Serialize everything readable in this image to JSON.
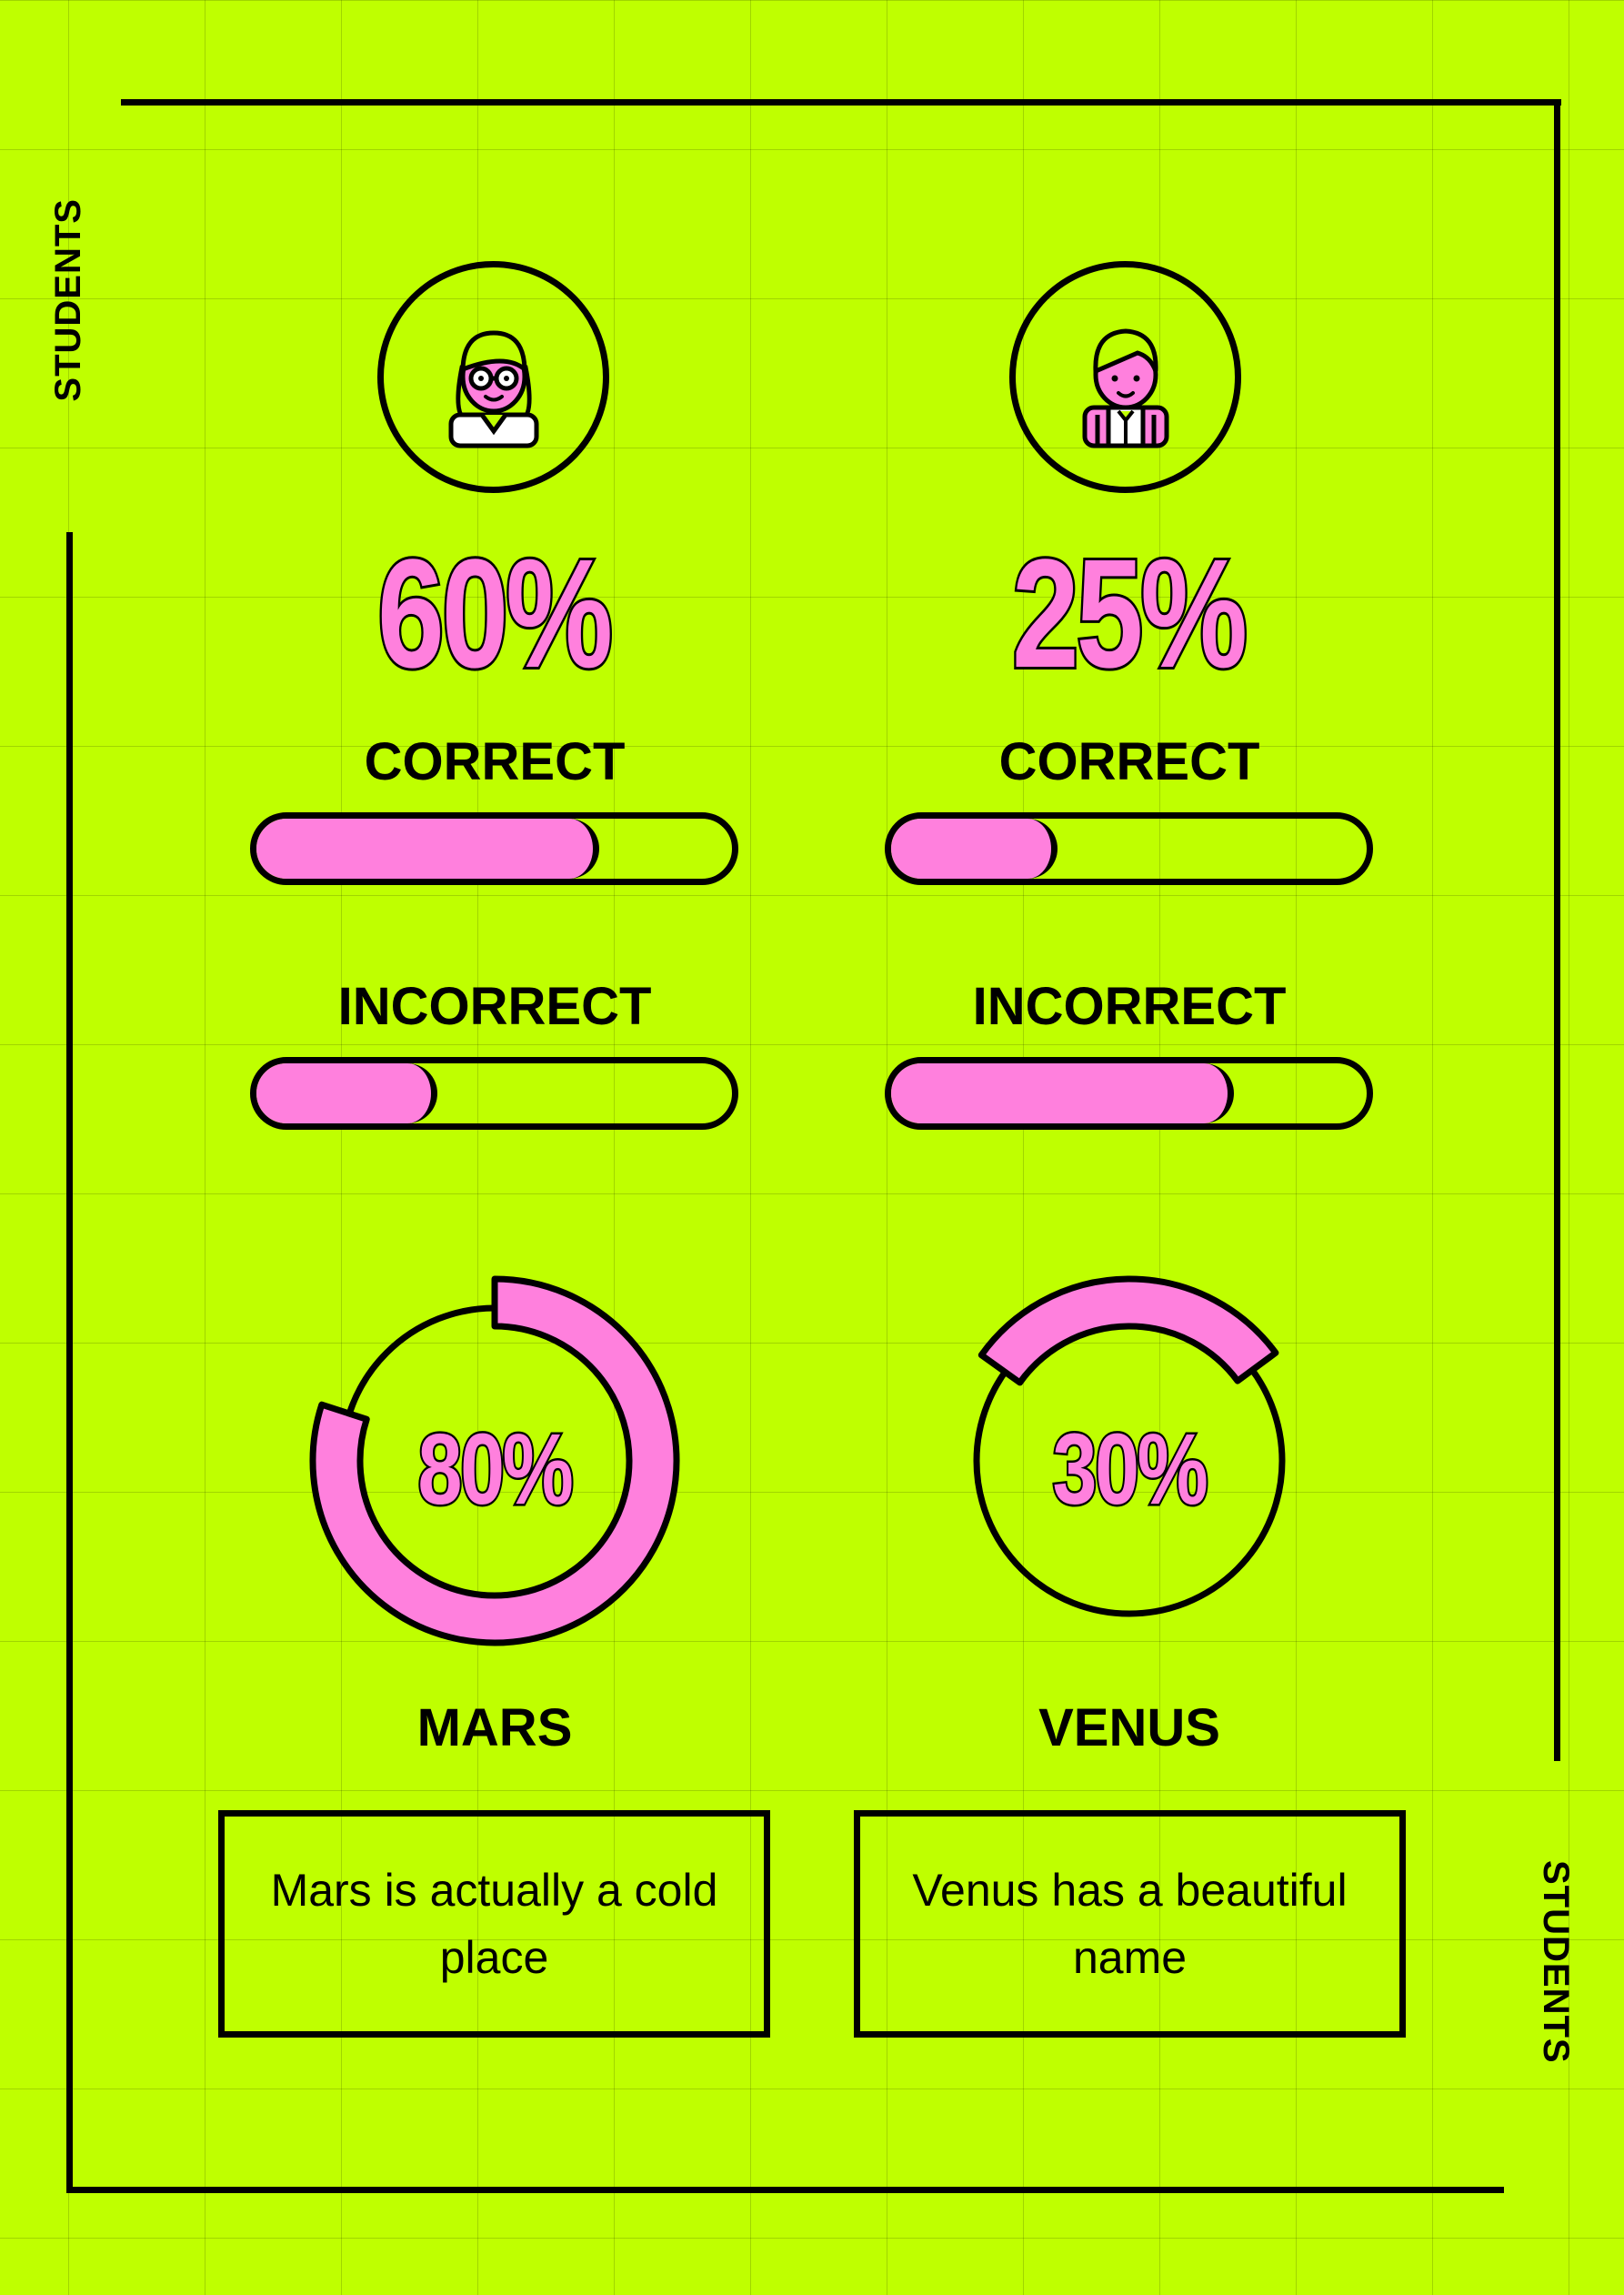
{
  "side_label": "STUDENTS",
  "colors": {
    "background": "#bfff00",
    "accent": "#ff80dd",
    "ink": "#000000"
  },
  "students": [
    {
      "avatar_icon": "girl-with-glasses-icon",
      "headline_value": "60%",
      "correct_label": "CORRECT",
      "correct_level": 0.72,
      "incorrect_label": "INCORRECT",
      "incorrect_level": 0.38,
      "ring_value": "80%",
      "ring_level": 0.8,
      "planet": "MARS",
      "note": "Mars is actually a cold place"
    },
    {
      "avatar_icon": "boy-student-icon",
      "headline_value": "25%",
      "correct_label": "CORRECT",
      "correct_level": 0.35,
      "incorrect_label": "INCORRECT",
      "incorrect_level": 0.72,
      "ring_value": "30%",
      "ring_level": 0.3,
      "planet": "VENUS",
      "note": "Venus has a beautiful name"
    }
  ]
}
